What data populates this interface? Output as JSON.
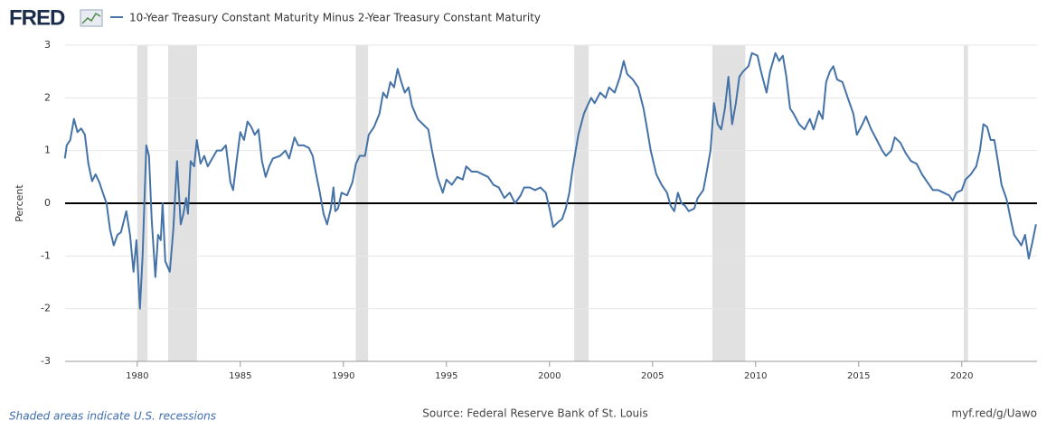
{
  "logo": "FRED",
  "chart_data": {
    "type": "line",
    "x": [
      1976.49,
      1976.58,
      1976.75,
      1976.93,
      1977.1,
      1977.28,
      1977.46,
      1977.63,
      1977.81,
      1977.98,
      1978.16,
      1978.33,
      1978.51,
      1978.68,
      1978.86,
      1979.04,
      1979.21,
      1979.47,
      1979.65,
      1979.82,
      1979.96,
      1980.13,
      1980.26,
      1980.44,
      1980.57,
      1980.7,
      1980.88,
      1981.01,
      1981.14,
      1981.23,
      1981.36,
      1981.58,
      1981.75,
      1981.93,
      1982.11,
      1982.24,
      1982.37,
      1982.46,
      1982.59,
      1982.76,
      1982.89,
      1983.07,
      1983.25,
      1983.42,
      1983.64,
      1983.86,
      1984.08,
      1984.3,
      1984.52,
      1984.65,
      1984.82,
      1985.0,
      1985.18,
      1985.35,
      1985.53,
      1985.7,
      1985.88,
      1986.05,
      1986.23,
      1986.4,
      1986.58,
      1986.93,
      1987.19,
      1987.37,
      1987.63,
      1987.81,
      1988.07,
      1988.33,
      1988.51,
      1988.68,
      1988.86,
      1989.04,
      1989.21,
      1989.39,
      1989.52,
      1989.61,
      1989.74,
      1989.91,
      1990.18,
      1990.44,
      1990.61,
      1990.79,
      1991.05,
      1991.23,
      1991.49,
      1991.75,
      1991.93,
      1992.11,
      1992.28,
      1992.46,
      1992.63,
      1992.81,
      1992.98,
      1993.16,
      1993.33,
      1993.6,
      1993.86,
      1994.12,
      1994.3,
      1994.56,
      1994.82,
      1995.0,
      1995.26,
      1995.53,
      1995.79,
      1995.96,
      1996.23,
      1996.49,
      1996.75,
      1997.02,
      1997.28,
      1997.54,
      1997.81,
      1998.07,
      1998.33,
      1998.6,
      1998.77,
      1999.04,
      1999.3,
      1999.56,
      1999.82,
      2000.0,
      2000.18,
      2000.44,
      2000.61,
      2000.79,
      2000.96,
      2001.14,
      2001.4,
      2001.67,
      2001.84,
      2002.02,
      2002.19,
      2002.46,
      2002.72,
      2002.89,
      2003.16,
      2003.42,
      2003.6,
      2003.77,
      2004.04,
      2004.3,
      2004.56,
      2004.74,
      2004.91,
      2005.18,
      2005.44,
      2005.7,
      2005.88,
      2006.05,
      2006.23,
      2006.4,
      2006.58,
      2006.75,
      2007.02,
      2007.19,
      2007.46,
      2007.63,
      2007.81,
      2007.98,
      2008.16,
      2008.33,
      2008.51,
      2008.68,
      2008.86,
      2009.04,
      2009.21,
      2009.39,
      2009.65,
      2009.82,
      2010.09,
      2010.26,
      2010.53,
      2010.7,
      2010.96,
      2011.14,
      2011.32,
      2011.49,
      2011.67,
      2011.84,
      2012.11,
      2012.37,
      2012.63,
      2012.81,
      2013.07,
      2013.25,
      2013.42,
      2013.6,
      2013.77,
      2013.95,
      2014.21,
      2014.47,
      2014.74,
      2014.91,
      2015.18,
      2015.35,
      2015.61,
      2015.88,
      2016.14,
      2016.32,
      2016.58,
      2016.75,
      2017.02,
      2017.28,
      2017.54,
      2017.81,
      2018.07,
      2018.33,
      2018.6,
      2018.86,
      2019.12,
      2019.39,
      2019.56,
      2019.74,
      2020.0,
      2020.18,
      2020.44,
      2020.7,
      2020.88,
      2021.05,
      2021.23,
      2021.4,
      2021.58,
      2021.75,
      2021.93,
      2022.11,
      2022.19,
      2022.37,
      2022.54,
      2022.72,
      2022.89,
      2023.07,
      2023.25,
      2023.42,
      2023.6
    ],
    "series": [
      {
        "name": "10-Year Treasury Constant Maturity Minus 2-Year Treasury Constant Maturity",
        "color": "#4572a7",
        "values": [
          0.85,
          1.1,
          1.2,
          1.6,
          1.35,
          1.42,
          1.3,
          0.75,
          0.42,
          0.55,
          0.4,
          0.2,
          0.0,
          -0.5,
          -0.8,
          -0.6,
          -0.55,
          -0.15,
          -0.6,
          -1.3,
          -0.7,
          -2.0,
          -1.0,
          1.1,
          0.9,
          -0.3,
          -1.4,
          -0.6,
          -0.7,
          0.0,
          -1.1,
          -1.3,
          -0.5,
          0.8,
          -0.4,
          -0.2,
          0.1,
          -0.2,
          0.8,
          0.7,
          1.2,
          0.75,
          0.9,
          0.7,
          0.85,
          1.0,
          1.0,
          1.1,
          0.4,
          0.25,
          0.8,
          1.35,
          1.2,
          1.55,
          1.45,
          1.3,
          1.4,
          0.8,
          0.5,
          0.7,
          0.85,
          0.9,
          1.0,
          0.85,
          1.25,
          1.1,
          1.1,
          1.05,
          0.9,
          0.55,
          0.2,
          -0.2,
          -0.4,
          -0.1,
          0.3,
          -0.15,
          -0.1,
          0.2,
          0.15,
          0.4,
          0.75,
          0.9,
          0.9,
          1.3,
          1.45,
          1.7,
          2.1,
          2.0,
          2.3,
          2.2,
          2.55,
          2.3,
          2.1,
          2.2,
          1.85,
          1.6,
          1.5,
          1.4,
          1.0,
          0.5,
          0.2,
          0.45,
          0.35,
          0.5,
          0.45,
          0.7,
          0.6,
          0.6,
          0.55,
          0.5,
          0.35,
          0.3,
          0.1,
          0.2,
          0.0,
          0.15,
          0.3,
          0.3,
          0.25,
          0.3,
          0.2,
          -0.1,
          -0.45,
          -0.35,
          -0.3,
          -0.1,
          0.2,
          0.7,
          1.3,
          1.7,
          1.85,
          2.0,
          1.9,
          2.1,
          2.0,
          2.2,
          2.1,
          2.4,
          2.7,
          2.45,
          2.35,
          2.2,
          1.8,
          1.4,
          1.0,
          0.55,
          0.35,
          0.2,
          -0.05,
          -0.15,
          0.2,
          0.0,
          -0.05,
          -0.15,
          -0.1,
          0.1,
          0.25,
          0.6,
          1.0,
          1.9,
          1.5,
          1.4,
          1.8,
          2.4,
          1.5,
          1.9,
          2.4,
          2.5,
          2.6,
          2.85,
          2.8,
          2.5,
          2.1,
          2.5,
          2.85,
          2.7,
          2.8,
          2.4,
          1.8,
          1.7,
          1.5,
          1.4,
          1.6,
          1.4,
          1.75,
          1.6,
          2.3,
          2.5,
          2.6,
          2.35,
          2.3,
          2.0,
          1.7,
          1.3,
          1.5,
          1.65,
          1.4,
          1.2,
          1.0,
          0.9,
          1.0,
          1.25,
          1.15,
          0.95,
          0.8,
          0.75,
          0.55,
          0.4,
          0.25,
          0.25,
          0.2,
          0.15,
          0.05,
          0.2,
          0.25,
          0.45,
          0.55,
          0.7,
          1.0,
          1.5,
          1.45,
          1.2,
          1.2,
          0.8,
          0.35,
          0.15,
          0.05,
          -0.3,
          -0.6,
          -0.7,
          -0.8,
          -0.6,
          -1.05,
          -0.75,
          -0.4
        ]
      }
    ],
    "xlim": [
      1976.5,
      2023.65
    ],
    "ylim": [
      -3,
      3
    ],
    "xticks": [
      1980,
      1985,
      1990,
      1995,
      2000,
      2005,
      2010,
      2015,
      2020
    ],
    "yticks": [
      -3,
      -2,
      -1,
      0,
      1,
      2,
      3
    ],
    "ylabel": "Percent",
    "grid": true,
    "zero_line": true,
    "recessions": [
      [
        1980.0,
        1980.5
      ],
      [
        1981.5,
        1982.9
      ],
      [
        1990.6,
        1991.2
      ],
      [
        2001.2,
        2001.9
      ],
      [
        2007.9,
        2009.5
      ],
      [
        2020.1,
        2020.3
      ]
    ],
    "recession_color": "#e1e1e1",
    "recession_note": "Shaded areas indicate U.S. recessions",
    "source": "Source: Federal Reserve Bank of St. Louis",
    "link": "myf.red/g/Uawo"
  }
}
